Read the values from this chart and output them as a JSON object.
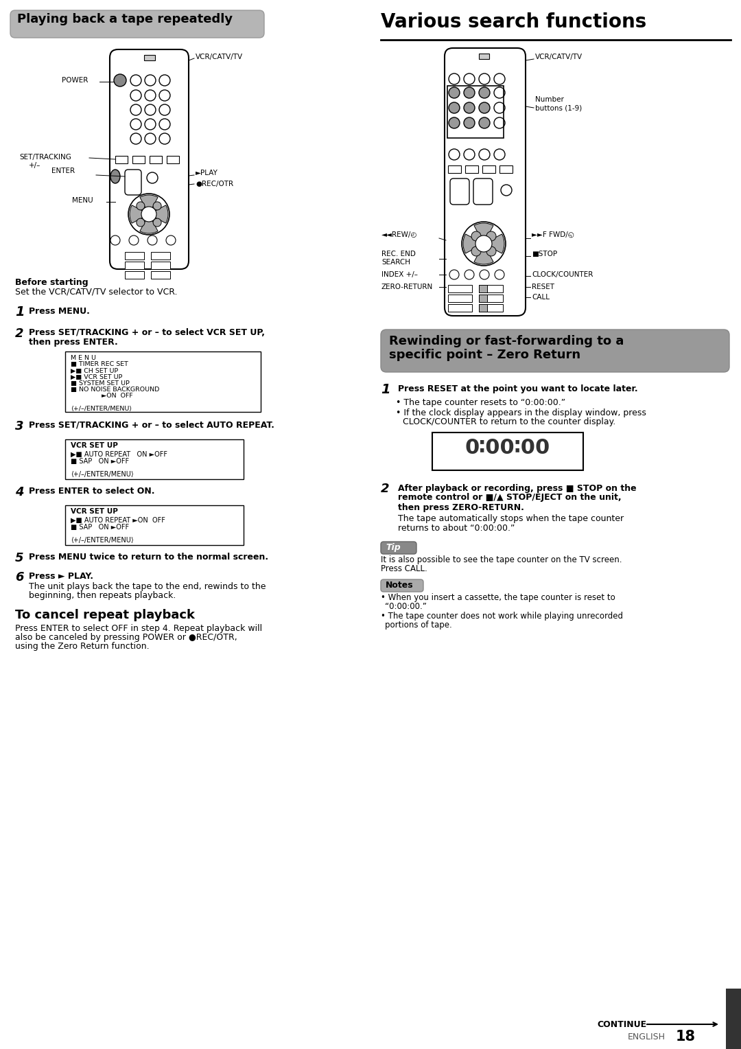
{
  "page_bg": "#ffffff",
  "left_header": "Playing back a tape repeatedly",
  "right_title": "Various search functions",
  "before_starting_bold": "Before starting",
  "before_starting_text": "Set the VCR/CATV/TV selector to VCR.",
  "menu_box1_lines": [
    "M E N U",
    "■ TIMER REC SET",
    "▶■ CH SET UP",
    "▶■ VCR SET UP",
    "■ SYSTEM SET UP",
    "■ NO NOISE BACKGROUND",
    "               ►ON  OFF",
    "",
    "⟨+/–/ENTER/MENU⟩"
  ],
  "menu_box2_title": "VCR SET UP",
  "menu_box2_lines": [
    "▶■ AUTO REPEAT   ON ►OFF",
    "■ SAP   ON ►OFF"
  ],
  "menu_box2_footer": "⟨+/–/ENTER/MENU⟩",
  "menu_box3_title": "VCR SET UP",
  "menu_box3_lines": [
    "▶■ AUTO REPEAT ►ON  OFF",
    "■ SAP   ON ►OFF"
  ],
  "menu_box3_footer": "⟨+/–/ENTER/MENU⟩",
  "zero_return_header_line1": "Rewinding or fast-forwarding to a",
  "zero_return_header_line2": "specific point – Zero Return",
  "cancel_title": "To cancel repeat playback",
  "cancel_text1": "Press ENTER to select OFF in step 4. Repeat playback will",
  "cancel_text2": "also be canceled by pressing POWER or ●REC/OTR,",
  "cancel_text3": "using the Zero Return function.",
  "footer_continue": "CONTINUE",
  "footer_english": "ENGLISH",
  "footer_page": "18"
}
